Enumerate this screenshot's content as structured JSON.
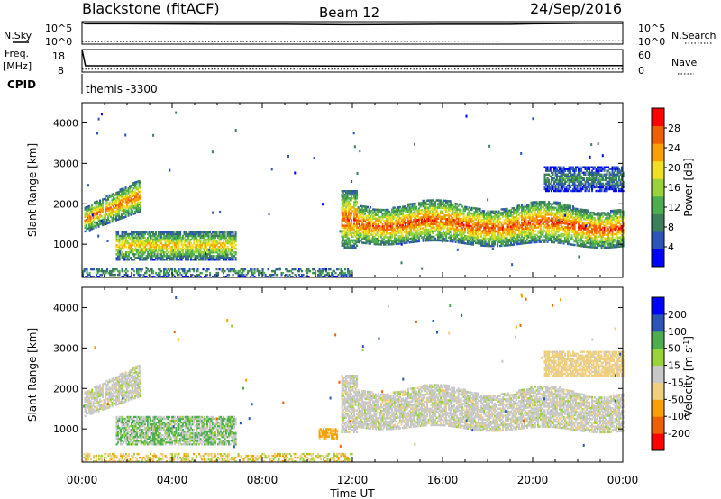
{
  "header": {
    "station": "Blackstone (fitACF)",
    "beam": "Beam 12",
    "date": "24/Sep/2016"
  },
  "top_panels": {
    "nsky_label": "N.Sky",
    "nsky_ticks": [
      "10^5",
      "10^0"
    ],
    "nsearch_label": "N.Search",
    "nsearch_ticks": [
      "10^5",
      "10^0"
    ],
    "freq_label": "Freq.",
    "freq_unit": "[MHz]",
    "freq_ticks": [
      "18",
      "8"
    ],
    "nave_label": "Nave",
    "nave_ticks": [
      "60",
      "0"
    ],
    "cpid_label": "CPID",
    "cpid_value": "themis -3300"
  },
  "x_axis": {
    "title": "Time UT",
    "ticks": [
      "00:00",
      "04:00",
      "08:00",
      "12:00",
      "16:00",
      "20:00",
      "00:00"
    ]
  },
  "colors": {
    "power": [
      "#0000ff",
      "#2b56b8",
      "#3d7f5a",
      "#4cae4f",
      "#9ad23a",
      "#f0e020",
      "#f7a000",
      "#f06000",
      "#ff0000"
    ],
    "velocity": [
      "#ff0000",
      "#f06000",
      "#f7a000",
      "#f0d080",
      "#c8c8c8",
      "#9ad23a",
      "#4cae4f",
      "#2b56b8",
      "#0000ff"
    ]
  },
  "chart_data": [
    {
      "type": "line",
      "name": "top-timeseries",
      "x_range_hours": [
        0,
        24
      ],
      "ylabel": "N.Sky / N.Search",
      "series": [
        {
          "x": [
            0,
            0.15,
            2,
            6,
            9,
            12,
            16,
            19,
            20,
            22,
            24
          ],
          "y": [
            5.0,
            4.7,
            4.7,
            4.6,
            4.6,
            4.5,
            4.6,
            4.6,
            4.7,
            4.8,
            4.8
          ]
        },
        {
          "x": [
            0,
            2,
            6,
            12,
            18,
            24
          ],
          "y": [
            0.6,
            0.6,
            0.6,
            0.6,
            0.7,
            0.8
          ]
        }
      ]
    },
    {
      "type": "line",
      "name": "freq-nave",
      "x_range_hours": [
        0,
        24
      ],
      "series": [
        {
          "x": [
            0,
            0.15,
            6,
            12,
            18,
            24
          ],
          "y": [
            18,
            10.8,
            10.8,
            10.7,
            10.8,
            10.9
          ]
        },
        {
          "x": [
            0,
            24
          ],
          "y": [
            9.3,
            9.3
          ]
        }
      ]
    },
    {
      "type": "heatmap",
      "name": "power",
      "xlabel": "Time UT",
      "ylabel": "Slant Range [km]",
      "xlim_hours": [
        0,
        24
      ],
      "ylim": [
        180,
        4500
      ],
      "yticks": [
        1000,
        2000,
        3000,
        4000
      ],
      "colorbar": {
        "label": "Power [dB]",
        "ticks": [
          4,
          8,
          12,
          16,
          20,
          24,
          28
        ],
        "range": [
          0,
          32
        ]
      },
      "features": [
        {
          "t": [
            0.1,
            2.6
          ],
          "r": [
            1300,
            2600
          ],
          "core_db": 26,
          "desc": "band rising with time"
        },
        {
          "t": [
            1.5,
            6.8
          ],
          "r": [
            600,
            1300
          ],
          "core_db": 22
        },
        {
          "t": [
            11.5,
            24
          ],
          "r": [
            900,
            2200
          ],
          "core_db": 28
        },
        {
          "t": [
            0,
            12
          ],
          "r": [
            180,
            400
          ],
          "core_db": 12
        },
        {
          "t": [
            20.5,
            24
          ],
          "r": [
            2300,
            2900
          ],
          "core_db": 10
        }
      ]
    },
    {
      "type": "heatmap",
      "name": "velocity",
      "xlabel": "Time UT",
      "ylabel": "Slant Range [km]",
      "xlim_hours": [
        0,
        24
      ],
      "ylim": [
        180,
        4500
      ],
      "yticks": [
        1000,
        2000,
        3000,
        4000
      ],
      "colorbar": {
        "label": "Velocity [m s^-1]",
        "ticks": [
          200,
          100,
          50,
          15,
          -15,
          -50,
          -100,
          -200
        ],
        "range": [
          -250,
          250
        ]
      },
      "features": [
        {
          "t": [
            0.1,
            2.6
          ],
          "r": [
            1300,
            2600
          ],
          "v": 0
        },
        {
          "t": [
            1.5,
            6.8
          ],
          "r": [
            600,
            1300
          ],
          "v": 60
        },
        {
          "t": [
            11.5,
            24
          ],
          "r": [
            900,
            2200
          ],
          "v": 0
        },
        {
          "t": [
            0,
            12
          ],
          "r": [
            180,
            400
          ],
          "v": -40
        },
        {
          "t": [
            10.5,
            11.3
          ],
          "r": [
            750,
            1000
          ],
          "v": -60
        },
        {
          "t": [
            20.5,
            24
          ],
          "r": [
            2300,
            2900
          ],
          "v": -30
        }
      ]
    }
  ]
}
